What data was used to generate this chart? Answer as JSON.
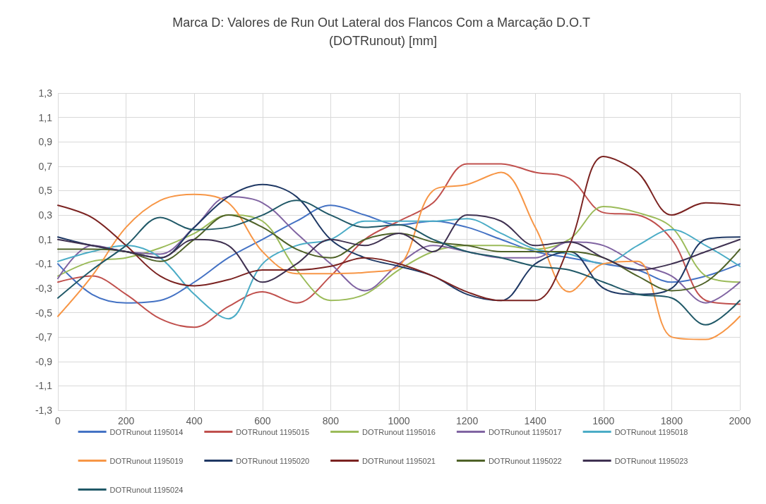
{
  "chart_data": {
    "type": "line",
    "title": "Marca D: Valores de Run Out Lateral dos Flancos Com a Marcação D.O.T (DOTRunout) [mm]",
    "x": [
      0,
      100,
      200,
      300,
      400,
      500,
      600,
      700,
      800,
      900,
      1000,
      1100,
      1200,
      1300,
      1400,
      1500,
      1600,
      1700,
      1800,
      1900,
      2000
    ],
    "series": [
      {
        "name": "DOTRunout 1195014",
        "color": "#4472c4",
        "values": [
          -0.1,
          -0.35,
          -0.42,
          -0.4,
          -0.25,
          -0.05,
          0.1,
          0.25,
          0.38,
          0.3,
          0.22,
          0.25,
          0.2,
          0.1,
          0.0,
          -0.05,
          -0.1,
          -0.15,
          -0.25,
          -0.2,
          -0.1
        ]
      },
      {
        "name": "DOTRunout 1195015",
        "color": "#c0504d",
        "values": [
          -0.25,
          -0.2,
          -0.35,
          -0.55,
          -0.62,
          -0.45,
          -0.33,
          -0.42,
          -0.2,
          0.1,
          0.25,
          0.4,
          0.72,
          0.72,
          0.65,
          0.6,
          0.32,
          0.3,
          0.1,
          -0.4,
          -0.43
        ]
      },
      {
        "name": "DOTRunout 1195016",
        "color": "#9bbb59",
        "values": [
          -0.2,
          -0.08,
          -0.05,
          0.03,
          0.15,
          0.3,
          0.25,
          -0.15,
          -0.4,
          -0.35,
          -0.15,
          0.0,
          0.05,
          0.05,
          0.02,
          0.1,
          0.37,
          0.32,
          0.2,
          -0.2,
          -0.25
        ]
      },
      {
        "name": "DOTRunout 1195017",
        "color": "#8064a2",
        "values": [
          -0.22,
          0.05,
          0.0,
          -0.02,
          0.2,
          0.45,
          0.4,
          0.15,
          -0.1,
          -0.32,
          -0.1,
          0.05,
          0.0,
          -0.05,
          -0.05,
          0.08,
          0.05,
          -0.1,
          -0.2,
          -0.42,
          -0.25
        ]
      },
      {
        "name": "DOTRunout 1195018",
        "color": "#4bacc6",
        "values": [
          -0.08,
          0.0,
          0.05,
          -0.05,
          -0.35,
          -0.55,
          -0.1,
          0.05,
          0.1,
          0.25,
          0.25,
          0.25,
          0.27,
          0.15,
          0.02,
          -0.02,
          -0.1,
          0.05,
          0.18,
          0.05,
          -0.12
        ]
      },
      {
        "name": "DOTRunout 1195019",
        "color": "#f79646",
        "values": [
          -0.53,
          -0.2,
          0.2,
          0.42,
          0.47,
          0.4,
          0.0,
          -0.18,
          -0.18,
          -0.17,
          -0.12,
          0.5,
          0.55,
          0.65,
          0.2,
          -0.33,
          -0.1,
          -0.08,
          -0.7,
          -0.72,
          -0.53
        ]
      },
      {
        "name": "DOTRunout 1195020",
        "color": "#1f3864",
        "values": [
          0.12,
          0.05,
          0.0,
          -0.05,
          0.2,
          0.45,
          0.55,
          0.45,
          0.1,
          -0.05,
          -0.12,
          -0.2,
          -0.35,
          -0.4,
          -0.1,
          0.0,
          -0.3,
          -0.35,
          -0.3,
          0.1,
          0.12
        ]
      },
      {
        "name": "DOTRunout 1195021",
        "color": "#7b2321",
        "values": [
          0.38,
          0.28,
          0.05,
          -0.2,
          -0.28,
          -0.23,
          -0.15,
          -0.15,
          -0.12,
          -0.05,
          -0.1,
          -0.2,
          -0.33,
          -0.4,
          -0.4,
          0.05,
          0.78,
          0.65,
          0.3,
          0.4,
          0.38
        ]
      },
      {
        "name": "DOTRunout 1195022",
        "color": "#4f6228",
        "values": [
          0.02,
          0.02,
          0.0,
          -0.08,
          0.1,
          0.3,
          0.2,
          0.02,
          -0.05,
          0.1,
          0.15,
          0.08,
          0.05,
          0.0,
          0.0,
          0.0,
          -0.05,
          -0.2,
          -0.32,
          -0.25,
          0.02
        ]
      },
      {
        "name": "DOTRunout 1195023",
        "color": "#3f3151",
        "values": [
          0.1,
          0.05,
          0.0,
          -0.05,
          0.1,
          0.05,
          -0.25,
          -0.1,
          0.1,
          0.05,
          0.15,
          0.0,
          0.3,
          0.25,
          0.05,
          0.08,
          -0.05,
          -0.15,
          -0.1,
          0.0,
          0.1
        ]
      },
      {
        "name": "DOTRunout 1195024",
        "color": "#215968",
        "values": [
          -0.38,
          -0.15,
          0.05,
          0.28,
          0.18,
          0.2,
          0.3,
          0.42,
          0.3,
          0.2,
          0.22,
          0.1,
          0.0,
          -0.05,
          -0.12,
          -0.15,
          -0.25,
          -0.35,
          -0.38,
          -0.6,
          -0.4
        ]
      }
    ],
    "xlim": [
      0,
      2000
    ],
    "xticks": [
      0,
      200,
      400,
      600,
      800,
      1000,
      1200,
      1400,
      1600,
      1800,
      2000
    ],
    "ylim": [
      -1.3,
      1.3
    ],
    "yticks": [
      {
        "value": -1.3,
        "label": "-1,3"
      },
      {
        "value": -1.1,
        "label": "-1,1"
      },
      {
        "value": -0.9,
        "label": "-0,9"
      },
      {
        "value": -0.7,
        "label": "-0,7"
      },
      {
        "value": -0.5,
        "label": "-0,5"
      },
      {
        "value": -0.3,
        "label": "-0,3"
      },
      {
        "value": -0.1,
        "label": "-0,1"
      },
      {
        "value": 0.1,
        "label": "0,1"
      },
      {
        "value": 0.3,
        "label": "0,3"
      },
      {
        "value": 0.5,
        "label": "0,5"
      },
      {
        "value": 0.7,
        "label": "0,7"
      },
      {
        "value": 0.9,
        "label": "0,9"
      },
      {
        "value": 1.1,
        "label": "1,1"
      },
      {
        "value": 1.3,
        "label": "1,3"
      }
    ],
    "grid": true,
    "legend": "bottom",
    "marker": "none",
    "line_style": "solid"
  }
}
